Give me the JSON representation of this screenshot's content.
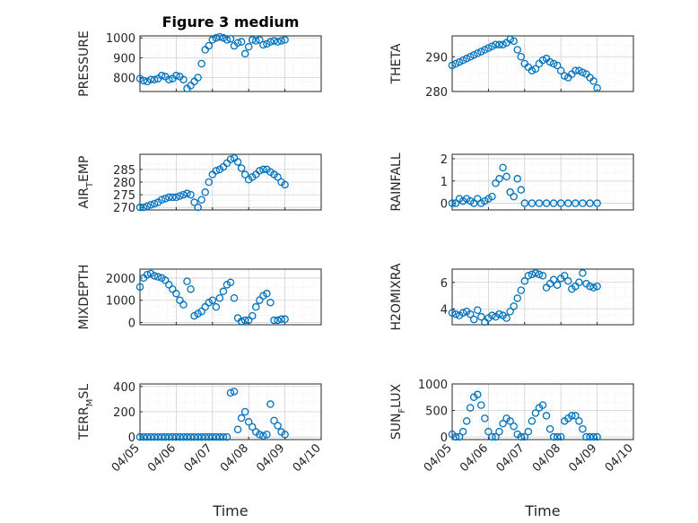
{
  "figure": {
    "title": "Figure 3 medium",
    "xlabel": "Time",
    "xticks": [
      "04/05",
      "04/06",
      "04/07",
      "04/08",
      "04/09",
      "04/10"
    ]
  },
  "colors": {
    "marker": "#0072bd",
    "axis": "#262626",
    "grid": "#d0d0d0",
    "minor_grid": "#e4e4e4"
  },
  "chart_data": [
    {
      "type": "scatter",
      "ylabel": "PRESSURE",
      "ylabel_sub": "",
      "ylabel_post": "",
      "ylim": [
        730,
        1010
      ],
      "yticks": [
        800,
        900,
        1000
      ],
      "grid": true,
      "x": [
        0.0,
        0.1,
        0.2,
        0.3,
        0.4,
        0.5,
        0.6,
        0.7,
        0.8,
        0.9,
        1.0,
        1.1,
        1.2,
        1.3,
        1.4,
        1.5,
        1.6,
        1.7,
        1.8,
        1.9,
        2.0,
        2.1,
        2.2,
        2.3,
        2.4,
        2.5,
        2.6,
        2.7,
        2.8,
        2.9,
        3.0,
        3.1,
        3.2,
        3.3,
        3.4,
        3.5,
        3.6,
        3.7,
        3.8,
        3.9,
        4.0
      ],
      "y": [
        795,
        785,
        780,
        790,
        790,
        795,
        810,
        805,
        790,
        795,
        810,
        805,
        790,
        745,
        760,
        780,
        800,
        870,
        940,
        960,
        990,
        1000,
        1005,
        1000,
        990,
        995,
        960,
        975,
        980,
        920,
        955,
        990,
        985,
        990,
        965,
        970,
        980,
        985,
        980,
        985,
        990
      ]
    },
    {
      "type": "scatter",
      "ylabel": "THETA",
      "ylabel_sub": "",
      "ylabel_post": "",
      "ylim": [
        280,
        296
      ],
      "yticks": [
        280,
        290
      ],
      "grid": true,
      "x": [
        0.0,
        0.1,
        0.2,
        0.3,
        0.4,
        0.5,
        0.6,
        0.7,
        0.8,
        0.9,
        1.0,
        1.1,
        1.2,
        1.3,
        1.4,
        1.5,
        1.6,
        1.7,
        1.8,
        1.9,
        2.0,
        2.1,
        2.2,
        2.3,
        2.4,
        2.5,
        2.6,
        2.7,
        2.8,
        2.9,
        3.0,
        3.1,
        3.2,
        3.3,
        3.4,
        3.5,
        3.6,
        3.7,
        3.8,
        3.9,
        4.0
      ],
      "y": [
        287.5,
        288,
        288.5,
        289,
        289.5,
        290,
        290.5,
        291,
        291.5,
        292,
        292.5,
        293,
        293.5,
        293.5,
        293.5,
        294,
        295,
        294.5,
        292,
        290,
        288,
        287,
        286,
        286.5,
        288,
        289,
        289.5,
        288.5,
        288,
        287.5,
        286,
        284.5,
        284,
        285,
        286,
        286,
        285.5,
        285,
        284,
        283,
        281
      ]
    },
    {
      "type": "scatter",
      "ylabel": "AIR",
      "ylabel_sub": "T",
      "ylabel_post": "EMP",
      "ylim": [
        269,
        291
      ],
      "yticks": [
        270,
        275,
        280,
        285
      ],
      "grid": true,
      "x": [
        0.0,
        0.1,
        0.2,
        0.3,
        0.4,
        0.5,
        0.6,
        0.7,
        0.8,
        0.9,
        1.0,
        1.1,
        1.2,
        1.3,
        1.4,
        1.5,
        1.6,
        1.7,
        1.8,
        1.9,
        2.0,
        2.1,
        2.2,
        2.3,
        2.4,
        2.5,
        2.6,
        2.7,
        2.8,
        2.9,
        3.0,
        3.1,
        3.2,
        3.3,
        3.4,
        3.5,
        3.6,
        3.7,
        3.8,
        3.9,
        4.0
      ],
      "y": [
        270,
        270,
        270.5,
        271,
        271.5,
        272,
        273,
        273.5,
        274,
        274,
        274,
        274.5,
        275,
        275.5,
        275,
        272,
        270,
        273,
        276,
        280,
        283,
        284.5,
        285,
        286,
        287.5,
        289,
        289.5,
        288,
        285.5,
        283,
        281,
        282,
        283,
        284.5,
        285,
        285,
        284,
        283,
        282,
        280,
        279
      ]
    },
    {
      "type": "scatter",
      "ylabel": "RAINFALL",
      "ylabel_sub": "",
      "ylabel_post": "",
      "ylim": [
        -0.3,
        2.2
      ],
      "yticks": [
        0,
        1,
        2
      ],
      "grid": true,
      "x": [
        0.0,
        0.1,
        0.2,
        0.3,
        0.4,
        0.5,
        0.6,
        0.7,
        0.8,
        0.9,
        1.0,
        1.1,
        1.2,
        1.3,
        1.4,
        1.5,
        1.6,
        1.7,
        1.8,
        1.9,
        2.0,
        2.2,
        2.4,
        2.6,
        2.8,
        3.0,
        3.2,
        3.4,
        3.6,
        3.8,
        4.0
      ],
      "y": [
        0,
        0,
        0.2,
        0.1,
        0.2,
        0.1,
        0,
        0.2,
        0,
        0.1,
        0.2,
        0.3,
        0.9,
        1.1,
        1.6,
        1.2,
        0.5,
        0.3,
        1.1,
        0.6,
        0,
        0,
        0,
        0,
        0,
        0,
        0,
        0,
        0,
        0,
        0
      ]
    },
    {
      "type": "scatter",
      "ylabel": "MIXDEPTH",
      "ylabel_sub": "",
      "ylabel_post": "",
      "ylim": [
        -100,
        2400
      ],
      "yticks": [
        0,
        1000,
        2000
      ],
      "grid": true,
      "x": [
        0.0,
        0.1,
        0.2,
        0.3,
        0.4,
        0.5,
        0.6,
        0.7,
        0.8,
        0.9,
        1.0,
        1.1,
        1.2,
        1.3,
        1.4,
        1.5,
        1.6,
        1.7,
        1.8,
        1.9,
        2.0,
        2.1,
        2.2,
        2.3,
        2.4,
        2.5,
        2.6,
        2.7,
        2.8,
        2.9,
        3.0,
        3.1,
        3.2,
        3.3,
        3.4,
        3.5,
        3.6,
        3.7,
        3.8,
        3.9,
        4.0
      ],
      "y": [
        1600,
        2000,
        2150,
        2200,
        2100,
        2050,
        2000,
        1900,
        1700,
        1500,
        1300,
        1000,
        800,
        1850,
        1500,
        300,
        400,
        500,
        700,
        900,
        1000,
        700,
        1100,
        1400,
        1700,
        1800,
        1100,
        200,
        50,
        100,
        100,
        300,
        700,
        1000,
        1200,
        1300,
        900,
        100,
        100,
        150,
        150
      ]
    },
    {
      "type": "scatter",
      "ylabel": "H2OMIXRA",
      "ylabel_sub": "",
      "ylabel_post": "",
      "ylim": [
        2.8,
        7.0
      ],
      "yticks": [
        4,
        6
      ],
      "grid": true,
      "x": [
        0.0,
        0.1,
        0.2,
        0.3,
        0.4,
        0.5,
        0.6,
        0.7,
        0.8,
        0.9,
        1.0,
        1.1,
        1.2,
        1.3,
        1.4,
        1.5,
        1.6,
        1.7,
        1.8,
        1.9,
        2.0,
        2.1,
        2.2,
        2.3,
        2.4,
        2.5,
        2.6,
        2.7,
        2.8,
        2.9,
        3.0,
        3.1,
        3.2,
        3.3,
        3.4,
        3.5,
        3.6,
        3.7,
        3.8,
        3.9,
        4.0
      ],
      "y": [
        3.7,
        3.6,
        3.5,
        3.7,
        3.8,
        3.6,
        3.2,
        3.9,
        3.4,
        3.0,
        3.3,
        3.5,
        3.4,
        3.6,
        3.5,
        3.3,
        3.8,
        4.2,
        4.8,
        5.4,
        6.1,
        6.5,
        6.6,
        6.7,
        6.6,
        6.5,
        5.6,
        5.9,
        6.2,
        5.8,
        6.3,
        6.5,
        6.1,
        5.5,
        5.7,
        6.0,
        6.7,
        5.9,
        5.7,
        5.6,
        5.7
      ]
    },
    {
      "type": "scatter",
      "ylabel": "TERR",
      "ylabel_sub": "M",
      "ylabel_post": "SL",
      "ylim": [
        -20,
        420
      ],
      "yticks": [
        0,
        200,
        400
      ],
      "grid": true,
      "x": [
        0.0,
        0.1,
        0.2,
        0.3,
        0.4,
        0.5,
        0.6,
        0.7,
        0.8,
        0.9,
        1.0,
        1.1,
        1.2,
        1.3,
        1.4,
        1.5,
        1.6,
        1.7,
        1.8,
        1.9,
        2.0,
        2.1,
        2.2,
        2.3,
        2.4,
        2.5,
        2.6,
        2.7,
        2.8,
        2.9,
        3.0,
        3.1,
        3.2,
        3.3,
        3.4,
        3.5,
        3.6,
        3.7,
        3.8,
        3.9,
        4.0
      ],
      "y": [
        0,
        0,
        0,
        0,
        0,
        0,
        0,
        0,
        0,
        0,
        0,
        0,
        0,
        0,
        0,
        0,
        0,
        0,
        0,
        0,
        0,
        0,
        0,
        0,
        0,
        350,
        360,
        60,
        150,
        200,
        120,
        80,
        40,
        20,
        10,
        20,
        260,
        130,
        90,
        40,
        20
      ]
    },
    {
      "type": "scatter",
      "ylabel": "SUN",
      "ylabel_sub": "F",
      "ylabel_post": "LUX",
      "ylim": [
        -50,
        1000
      ],
      "yticks": [
        0,
        500,
        1000
      ],
      "grid": true,
      "x": [
        0.0,
        0.1,
        0.2,
        0.3,
        0.4,
        0.5,
        0.6,
        0.7,
        0.8,
        0.9,
        1.0,
        1.1,
        1.2,
        1.3,
        1.4,
        1.5,
        1.6,
        1.7,
        1.8,
        1.9,
        2.0,
        2.1,
        2.2,
        2.3,
        2.4,
        2.5,
        2.6,
        2.7,
        2.8,
        2.9,
        3.0,
        3.1,
        3.2,
        3.3,
        3.4,
        3.5,
        3.6,
        3.7,
        3.8,
        3.9,
        4.0
      ],
      "y": [
        50,
        0,
        0,
        100,
        300,
        550,
        750,
        800,
        600,
        350,
        100,
        0,
        0,
        100,
        250,
        350,
        300,
        200,
        50,
        0,
        0,
        100,
        300,
        450,
        550,
        600,
        400,
        150,
        0,
        0,
        0,
        300,
        350,
        400,
        400,
        300,
        150,
        0,
        0,
        0,
        0
      ]
    }
  ]
}
